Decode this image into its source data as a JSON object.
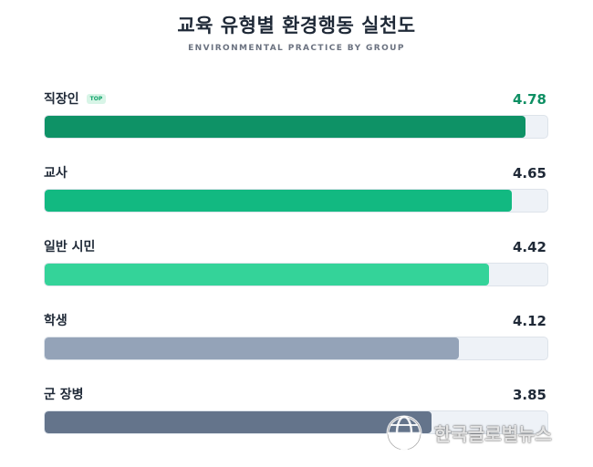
{
  "title": "교육 유형별 환경행동 실천도",
  "subtitle": "ENVIRONMENTAL PRACTICE BY GROUP",
  "watermark": "한국글로벌뉴스",
  "colors": {
    "value_green": "#0e8f63",
    "value_default": "#1f2937",
    "track": "#eef2f7"
  },
  "chart_data": {
    "type": "bar",
    "orientation": "horizontal",
    "title": "교육 유형별 환경행동 실천도",
    "subtitle": "ENVIRONMENTAL PRACTICE BY GROUP",
    "categories": [
      "직장인",
      "교사",
      "일반 시민",
      "학생",
      "군 장병"
    ],
    "values": [
      4.78,
      4.65,
      4.42,
      4.12,
      3.85
    ],
    "value_labels": [
      "4.78",
      "4.65",
      "4.42",
      "4.12",
      "3.85"
    ],
    "xlim": [
      0,
      5
    ],
    "bar_colors": [
      "#0e9266",
      "#12b981",
      "#34d399",
      "#94a3b8",
      "#64748b"
    ],
    "badge": {
      "category": "직장인",
      "text": "TOP"
    },
    "grid": false,
    "legend": "none"
  }
}
